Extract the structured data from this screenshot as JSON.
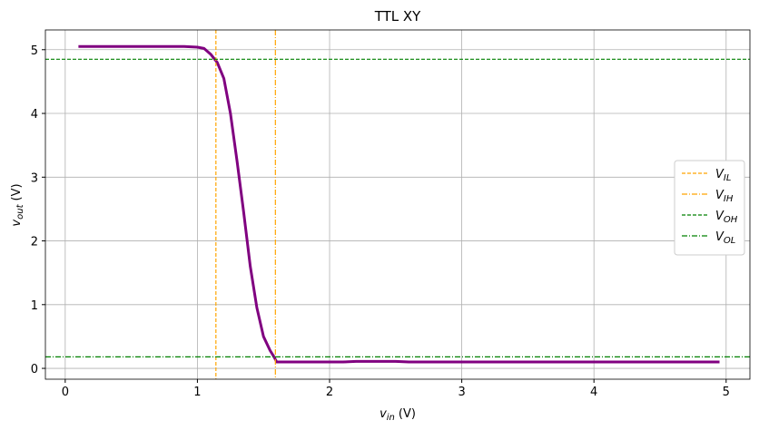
{
  "chart_data": {
    "type": "line",
    "title": "TTL XY",
    "x_label": {
      "symbol": "v",
      "subscript": "in",
      "unit": "(V)"
    },
    "y_label": {
      "symbol": "v",
      "subscript": "out",
      "unit": "(V)"
    },
    "xlim": [
      -0.15,
      5.18
    ],
    "ylim": [
      -0.17,
      5.31
    ],
    "xticks": [
      0,
      1,
      2,
      3,
      4,
      5
    ],
    "yticks": [
      0,
      1,
      2,
      3,
      4,
      5
    ],
    "grid": true,
    "legend": "right",
    "series": [
      {
        "color": "#800080",
        "x": [
          0.1,
          0.2,
          0.3,
          0.4,
          0.5,
          0.6,
          0.7,
          0.8,
          0.9,
          1.0,
          1.05,
          1.1,
          1.15,
          1.2,
          1.25,
          1.3,
          1.35,
          1.4,
          1.45,
          1.5,
          1.55,
          1.58,
          1.6,
          1.7,
          1.8,
          1.9,
          2.0,
          2.1,
          2.2,
          2.3,
          2.4,
          2.5,
          2.6,
          2.7,
          2.8,
          2.9,
          3.0,
          3.1,
          3.2,
          3.3,
          3.4,
          3.5,
          3.6,
          3.7,
          3.8,
          3.9,
          4.0,
          4.1,
          4.2,
          4.3,
          4.4,
          4.5,
          4.6,
          4.7,
          4.8,
          4.9,
          4.95
        ],
        "values": [
          5.05,
          5.05,
          5.05,
          5.05,
          5.05,
          5.05,
          5.05,
          5.05,
          5.05,
          5.04,
          5.02,
          4.93,
          4.8,
          4.55,
          4.0,
          3.25,
          2.45,
          1.6,
          0.95,
          0.5,
          0.28,
          0.18,
          0.1,
          0.1,
          0.1,
          0.1,
          0.1,
          0.1,
          0.11,
          0.11,
          0.11,
          0.11,
          0.1,
          0.1,
          0.1,
          0.1,
          0.1,
          0.1,
          0.1,
          0.1,
          0.1,
          0.1,
          0.1,
          0.1,
          0.1,
          0.1,
          0.1,
          0.1,
          0.1,
          0.1,
          0.1,
          0.1,
          0.1,
          0.1,
          0.1,
          0.1,
          0.1
        ]
      }
    ],
    "reference_lines": [
      {
        "symbol": "V",
        "subscript": "IL",
        "axis": "x",
        "value": 1.14,
        "color": "#ffa500",
        "style": "dashed"
      },
      {
        "symbol": "V",
        "subscript": "IH",
        "axis": "x",
        "value": 1.59,
        "color": "#ffa500",
        "style": "dashdot"
      },
      {
        "symbol": "V",
        "subscript": "OH",
        "axis": "y",
        "value": 4.85,
        "color": "#008000",
        "style": "dashed"
      },
      {
        "symbol": "V",
        "subscript": "OL",
        "axis": "y",
        "value": 0.18,
        "color": "#008000",
        "style": "dashdot"
      }
    ]
  }
}
